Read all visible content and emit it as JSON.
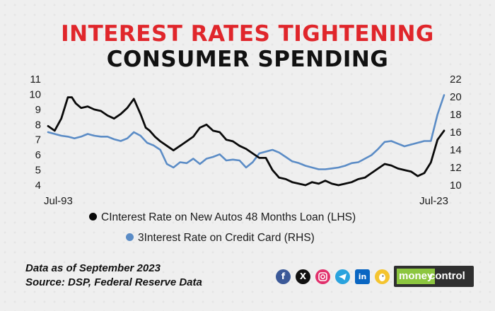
{
  "title_line1": "INTEREST RATES TIGHTENING",
  "title_line2": "CONSUMER SPENDING",
  "source": {
    "line1": "Data as of September 2023",
    "line2": "Source: DSP, Federal Reserve Data"
  },
  "brand": {
    "money": "money",
    "control": "control"
  },
  "social_icons": [
    "facebook-icon",
    "x-icon",
    "instagram-icon",
    "telegram-icon",
    "linkedin-icon",
    "koo-icon"
  ],
  "colors": {
    "title_red": "#e0262b",
    "series_lhs": "#0a0a0a",
    "series_rhs": "#5b8cc6"
  },
  "chart_data": {
    "type": "line",
    "title": "INTEREST RATES TIGHTENING CONSUMER SPENDING",
    "x_range": [
      1993.5,
      2023.5
    ],
    "x_tick_labels": [
      {
        "x": 1993.5,
        "label": "Jul-93"
      },
      {
        "x": 2023.5,
        "label": "Jul-23"
      }
    ],
    "y_left": {
      "range": [
        4,
        11
      ],
      "ticks": [
        4,
        5,
        6,
        7,
        8,
        9,
        10,
        11
      ]
    },
    "y_right": {
      "range": [
        10,
        22
      ],
      "ticks": [
        10,
        12,
        14,
        16,
        18,
        20,
        22
      ]
    },
    "grid": false,
    "legend_position": "bottom-center",
    "series": [
      {
        "name": "CInterest Rate on New Autos 48 Months Loan (LHS)",
        "axis": "left",
        "color": "#0a0a0a",
        "x": [
          1993.5,
          1994.0,
          1994.5,
          1995.0,
          1995.3,
          1995.6,
          1996.0,
          1996.5,
          1997.0,
          1997.5,
          1998.0,
          1998.5,
          1999.0,
          1999.5,
          2000.0,
          2000.5,
          2000.9,
          2001.2,
          2001.6,
          2002.0,
          2002.5,
          2003.0,
          2003.5,
          2004.0,
          2004.5,
          2005.0,
          2005.5,
          2006.0,
          2006.5,
          2007.0,
          2007.5,
          2008.0,
          2008.5,
          2009.0,
          2009.5,
          2010.0,
          2010.5,
          2011.0,
          2011.5,
          2012.0,
          2012.5,
          2013.0,
          2013.5,
          2014.0,
          2014.5,
          2015.0,
          2015.5,
          2016.0,
          2016.5,
          2017.0,
          2017.5,
          2018.0,
          2018.5,
          2019.0,
          2019.5,
          2020.0,
          2020.5,
          2021.0,
          2021.5,
          2022.0,
          2022.5,
          2023.0,
          2023.5
        ],
        "values": [
          7.9,
          7.6,
          8.4,
          9.8,
          9.8,
          9.4,
          9.1,
          9.2,
          9.0,
          8.9,
          8.6,
          8.4,
          8.7,
          9.1,
          9.7,
          8.7,
          7.8,
          7.6,
          7.2,
          6.9,
          6.6,
          6.3,
          6.6,
          6.9,
          7.2,
          7.8,
          8.0,
          7.6,
          7.5,
          7.0,
          6.9,
          6.6,
          6.4,
          6.1,
          5.8,
          5.8,
          5.0,
          4.5,
          4.4,
          4.2,
          4.1,
          4.0,
          4.2,
          4.1,
          4.3,
          4.1,
          4.0,
          4.1,
          4.2,
          4.4,
          4.5,
          4.8,
          5.1,
          5.4,
          5.3,
          5.1,
          5.0,
          4.9,
          4.6,
          4.8,
          5.5,
          7.0,
          7.6
        ]
      },
      {
        "name": "3Interest Rate on Credit Card (RHS)",
        "axis": "right",
        "color": "#5b8cc6",
        "x": [
          1993.5,
          1994.0,
          1994.5,
          1995.0,
          1995.5,
          1996.0,
          1996.5,
          1997.0,
          1997.5,
          1998.0,
          1998.5,
          1999.0,
          1999.5,
          2000.0,
          2000.5,
          2001.0,
          2001.5,
          2002.0,
          2002.5,
          2003.0,
          2003.5,
          2004.0,
          2004.5,
          2005.0,
          2005.5,
          2006.0,
          2006.5,
          2007.0,
          2007.5,
          2008.0,
          2008.5,
          2009.0,
          2009.5,
          2010.0,
          2010.5,
          2011.0,
          2011.5,
          2012.0,
          2012.5,
          2013.0,
          2013.5,
          2014.0,
          2014.5,
          2015.0,
          2015.5,
          2016.0,
          2016.5,
          2017.0,
          2017.5,
          2018.0,
          2018.5,
          2019.0,
          2019.5,
          2020.0,
          2020.5,
          2021.0,
          2021.5,
          2022.0,
          2022.5,
          2023.0,
          2023.5
        ],
        "values": [
          16.0,
          15.8,
          15.6,
          15.5,
          15.3,
          15.5,
          15.8,
          15.6,
          15.5,
          15.5,
          15.2,
          15.0,
          15.3,
          16.0,
          15.6,
          14.8,
          14.5,
          14.0,
          12.4,
          12.0,
          12.6,
          12.5,
          13.0,
          12.4,
          13.0,
          13.2,
          13.5,
          12.8,
          12.9,
          12.8,
          12.0,
          12.6,
          13.6,
          13.8,
          14.0,
          13.7,
          13.2,
          12.7,
          12.5,
          12.2,
          12.0,
          11.8,
          11.8,
          11.9,
          12.0,
          12.2,
          12.5,
          12.6,
          13.0,
          13.4,
          14.1,
          14.9,
          15.0,
          14.7,
          14.4,
          14.6,
          14.8,
          15.0,
          15.0,
          18.0,
          20.2
        ]
      }
    ]
  }
}
